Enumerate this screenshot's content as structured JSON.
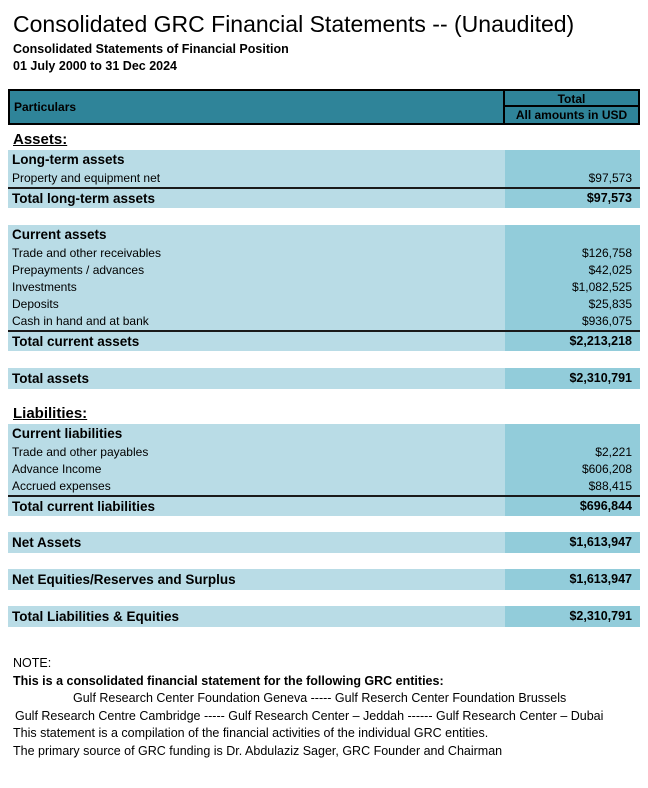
{
  "header": {
    "title": "Consolidated GRC Financial Statements -- (Unaudited)",
    "subtitle": "Consolidated Statements of Financial Position",
    "period": "01 July 2000 to 31 Dec 2024"
  },
  "table_head": {
    "particulars": "Particulars",
    "total": "Total",
    "unit": "All amounts in USD"
  },
  "assets": {
    "section_label": "Assets:",
    "long_term": {
      "group_label": "Long-term assets",
      "rows": [
        {
          "label": "Property and equipment net",
          "value": "$97,573"
        }
      ],
      "total_label": "Total long-term assets",
      "total_value": "$97,573"
    },
    "current": {
      "group_label": "Current assets",
      "rows": [
        {
          "label": "Trade and other receivables",
          "value": "$126,758"
        },
        {
          "label": "Prepayments / advances",
          "value": "$42,025"
        },
        {
          "label": "Investments",
          "value": "$1,082,525"
        },
        {
          "label": "Deposits",
          "value": "$25,835"
        },
        {
          "label": "Cash in hand and at bank",
          "value": "$936,075"
        }
      ],
      "total_label": "Total current assets",
      "total_value": "$2,213,218"
    },
    "total_label": "Total assets",
    "total_value": "$2,310,791"
  },
  "liabilities": {
    "section_label": "Liabilities:",
    "current": {
      "group_label": "Current liabilities",
      "rows": [
        {
          "label": "Trade and other payables",
          "value": "$2,221"
        },
        {
          "label": "Advance Income",
          "value": "$606,208"
        },
        {
          "label": "Accrued expenses",
          "value": "$88,415"
        }
      ],
      "total_label": "Total current liabilities",
      "total_value": "$696,844"
    }
  },
  "summary": {
    "net_assets": {
      "label": "Net Assets",
      "value": "$1,613,947"
    },
    "net_equities": {
      "label": "Net Equities/Reserves and Surplus",
      "value": "$1,613,947"
    },
    "total_liabilities_equities": {
      "label": "Total Liabilities & Equities",
      "value": "$2,310,791"
    }
  },
  "notes": {
    "heading": "NOTE:",
    "entities_intro": "This is a consolidated financial statement for the following GRC entities:",
    "entities_line1": "Gulf Research Center Foundation Geneva  ----- Gulf Reserch Center Foundation Brussels",
    "entities_line2": "Gulf Research Centre Cambridge ----- Gulf Research Center – Jeddah ------  Gulf Research Center – Dubai",
    "compilation": "This statement is a compilation of the financial activities of the individual GRC entities.",
    "funding": "The primary source of GRC funding is Dr. Abdulaziz Sager, GRC Founder and Chairman"
  },
  "colors": {
    "header_teal": "#2F8499",
    "row_light_blue": "#B9DCE6",
    "value_col_blue": "#92CCDA"
  }
}
